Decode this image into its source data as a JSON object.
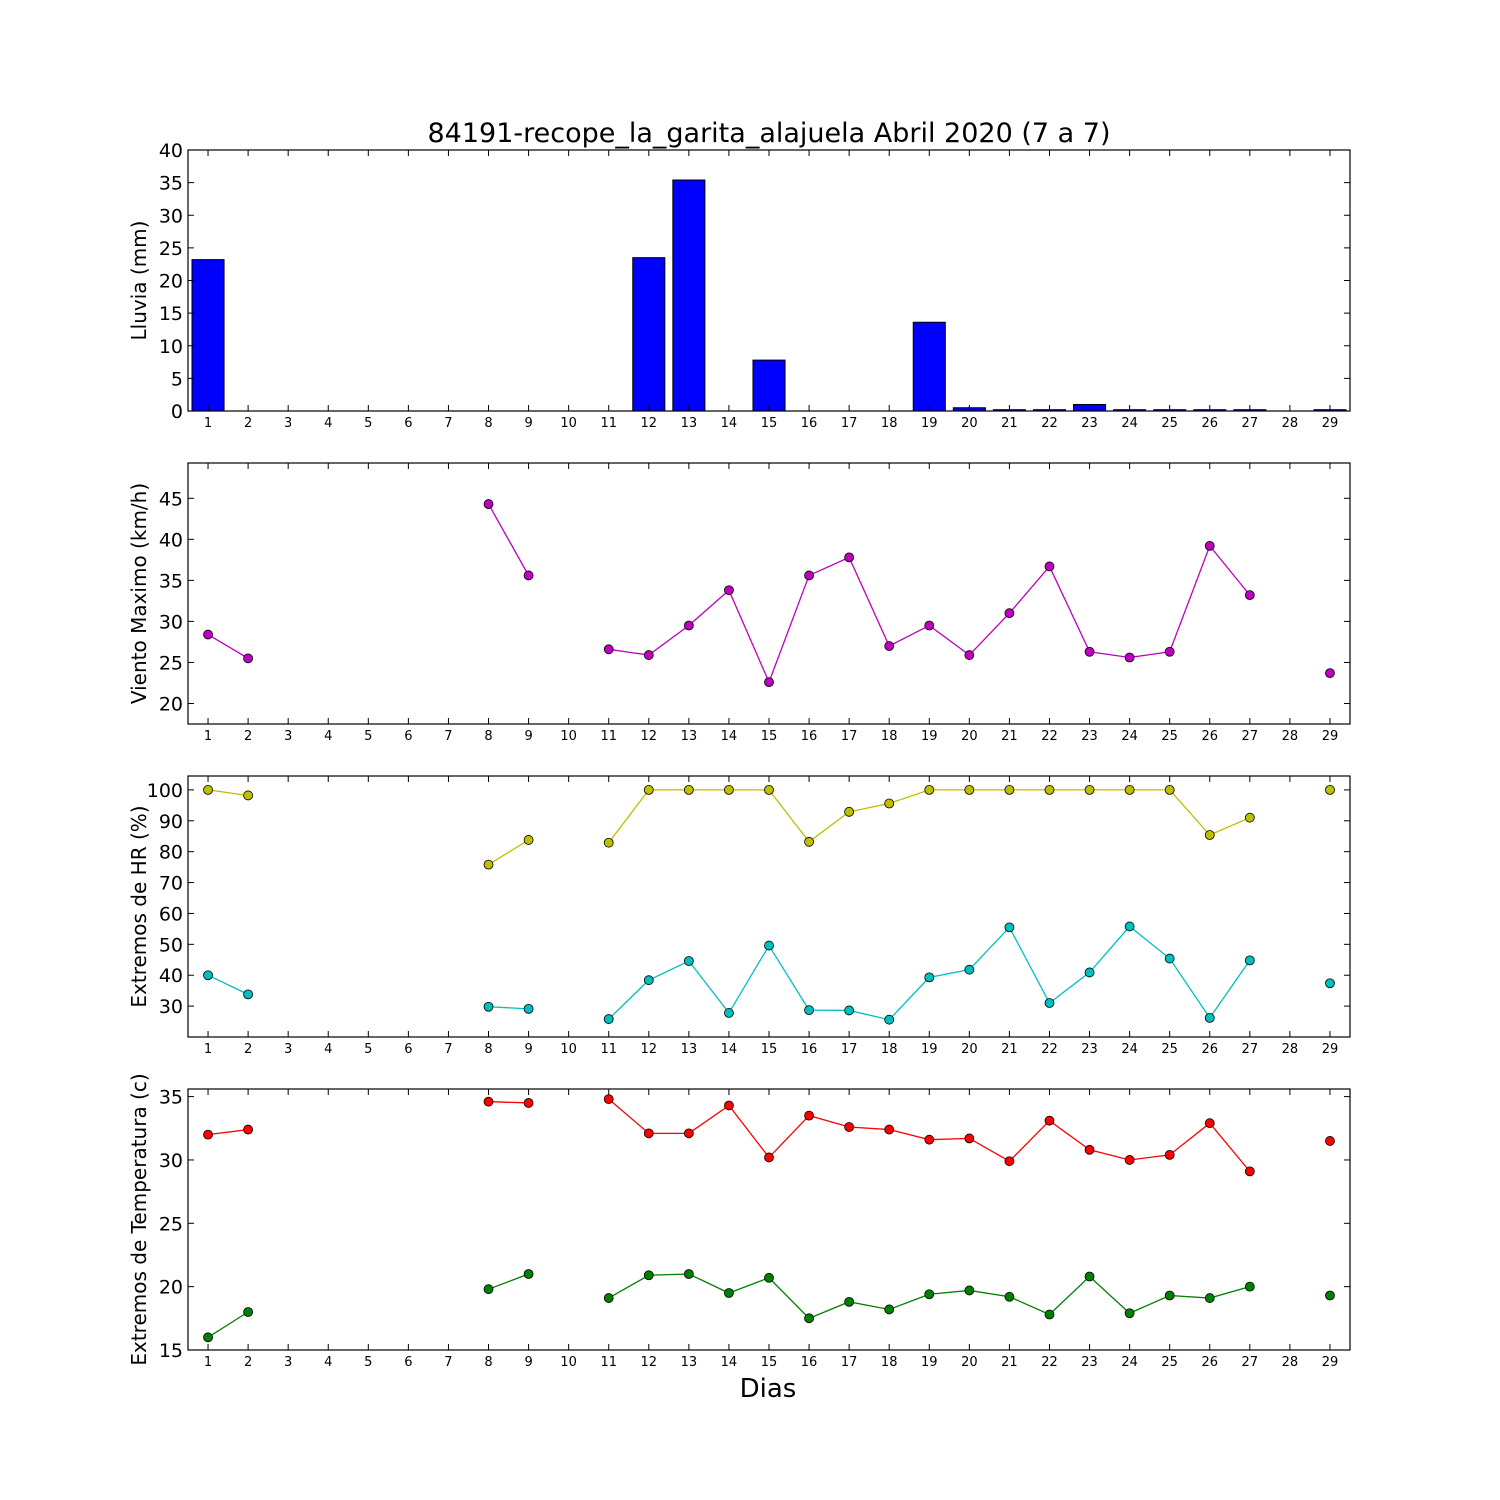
{
  "title": "84191-recope_la_garita_alajuela Abril 2020  (7 a 7)",
  "xlabel": "Dias",
  "chart_data": [
    {
      "type": "bar",
      "ylabel": "Lluvia (mm)",
      "ylim": [
        0,
        40
      ],
      "yticks": [
        0,
        5,
        10,
        15,
        20,
        25,
        30,
        35,
        40
      ],
      "x": [
        1,
        2,
        3,
        4,
        5,
        6,
        7,
        8,
        9,
        10,
        11,
        12,
        13,
        14,
        15,
        16,
        17,
        18,
        19,
        20,
        21,
        22,
        23,
        24,
        25,
        26,
        27,
        28,
        29
      ],
      "series": [
        {
          "color": "#0000ff",
          "values": [
            23.2,
            0,
            0,
            0,
            0,
            0,
            0,
            0,
            0,
            0,
            0,
            23.5,
            35.4,
            0,
            7.8,
            0,
            0,
            0,
            13.6,
            0.5,
            0.2,
            0.2,
            1.0,
            0.2,
            0.2,
            0.2,
            0.2,
            0,
            0.2
          ]
        }
      ]
    },
    {
      "type": "line",
      "ylabel": "Viento Maximo (km/h)",
      "ylim": [
        17.5,
        49.3
      ],
      "yticks": [
        20,
        25,
        30,
        35,
        40,
        45
      ],
      "x": [
        1,
        2,
        3,
        4,
        5,
        6,
        7,
        8,
        9,
        10,
        11,
        12,
        13,
        14,
        15,
        16,
        17,
        18,
        19,
        20,
        21,
        22,
        23,
        24,
        25,
        26,
        27,
        28,
        29
      ],
      "series": [
        {
          "color": "#bf00bf",
          "values": [
            28.4,
            25.5,
            null,
            null,
            null,
            null,
            null,
            44.3,
            35.6,
            null,
            26.6,
            25.9,
            29.5,
            33.8,
            22.6,
            35.6,
            37.8,
            27.0,
            29.5,
            25.9,
            31.0,
            36.7,
            26.3,
            25.6,
            26.3,
            39.2,
            33.2,
            null,
            23.7
          ]
        }
      ]
    },
    {
      "type": "line",
      "ylabel": "Extremos de HR (%)",
      "ylim": [
        20,
        104.5
      ],
      "yticks": [
        30,
        40,
        50,
        60,
        70,
        80,
        90,
        100
      ],
      "x": [
        1,
        2,
        3,
        4,
        5,
        6,
        7,
        8,
        9,
        10,
        11,
        12,
        13,
        14,
        15,
        16,
        17,
        18,
        19,
        20,
        21,
        22,
        23,
        24,
        25,
        26,
        27,
        28,
        29
      ],
      "series": [
        {
          "color": "#bfbf00",
          "values": [
            100,
            98.2,
            null,
            null,
            null,
            null,
            null,
            75.8,
            83.8,
            null,
            82.9,
            100,
            100,
            100,
            100,
            83.2,
            92.9,
            95.6,
            100,
            100,
            100,
            100,
            100,
            100,
            100,
            85.4,
            91.0,
            null,
            100
          ]
        },
        {
          "color": "#00bfbf",
          "values": [
            40.0,
            33.8,
            null,
            null,
            null,
            null,
            null,
            29.8,
            29.1,
            null,
            25.8,
            38.4,
            44.6,
            27.8,
            49.6,
            28.7,
            28.6,
            25.6,
            39.3,
            41.8,
            55.5,
            31.0,
            40.9,
            55.8,
            45.4,
            26.2,
            44.8,
            null,
            37.4
          ]
        }
      ]
    },
    {
      "type": "line",
      "ylabel": "Extremos de Temperatura (c)",
      "ylim": [
        15,
        35.6
      ],
      "yticks": [
        15,
        20,
        25,
        30,
        35
      ],
      "x": [
        1,
        2,
        3,
        4,
        5,
        6,
        7,
        8,
        9,
        10,
        11,
        12,
        13,
        14,
        15,
        16,
        17,
        18,
        19,
        20,
        21,
        22,
        23,
        24,
        25,
        26,
        27,
        28,
        29
      ],
      "series": [
        {
          "color": "#ff0000",
          "values": [
            32.0,
            32.4,
            null,
            null,
            null,
            null,
            null,
            34.6,
            34.5,
            null,
            34.8,
            32.1,
            32.1,
            34.3,
            30.2,
            33.5,
            32.6,
            32.4,
            31.6,
            31.7,
            29.9,
            33.1,
            30.8,
            30.0,
            30.4,
            32.9,
            29.1,
            null,
            31.5
          ]
        },
        {
          "color": "#008000",
          "values": [
            16.0,
            18.0,
            null,
            null,
            null,
            null,
            null,
            19.8,
            21.0,
            null,
            19.1,
            20.9,
            21.0,
            19.5,
            20.7,
            17.5,
            18.8,
            18.2,
            19.4,
            19.7,
            19.2,
            17.8,
            20.8,
            17.9,
            19.3,
            19.1,
            20.0,
            null,
            19.3
          ]
        }
      ]
    }
  ]
}
